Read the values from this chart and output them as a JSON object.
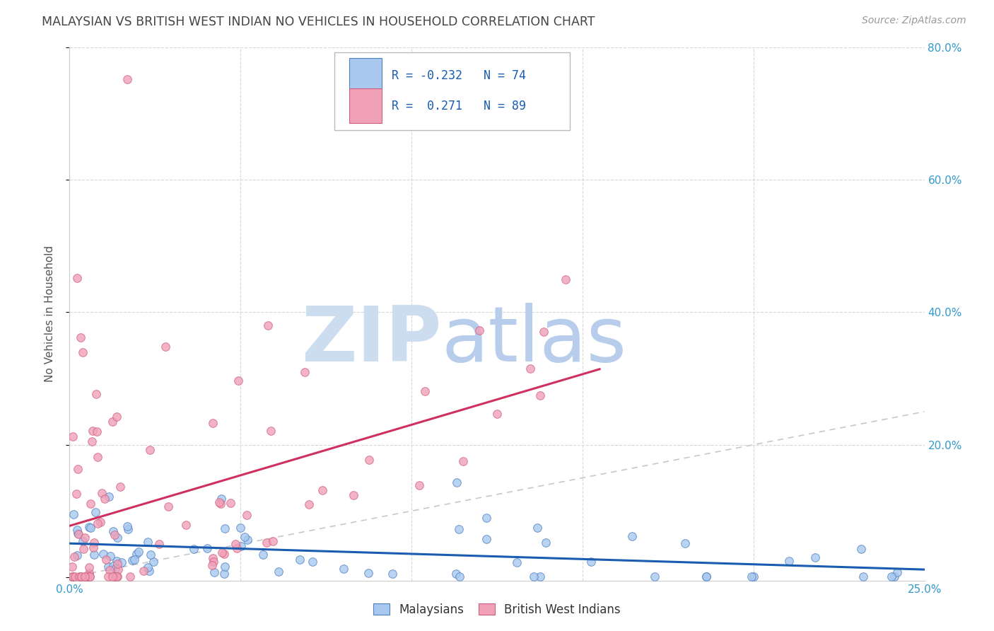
{
  "title": "MALAYSIAN VS BRITISH WEST INDIAN NO VEHICLES IN HOUSEHOLD CORRELATION CHART",
  "source": "Source: ZipAtlas.com",
  "ylabel": "No Vehicles in Household",
  "xlim": [
    0.0,
    0.25
  ],
  "ylim": [
    -0.005,
    0.8
  ],
  "blue_color": "#a8c8f0",
  "pink_color": "#f0a0b8",
  "blue_edge_color": "#5080c0",
  "pink_edge_color": "#d06080",
  "blue_line_color": "#1a5cb0",
  "pink_line_color": "#d03060",
  "diagonal_color": "#c8c8c8",
  "watermark_zip_color": "#ccddf0",
  "watermark_atlas_color": "#b8ccec",
  "axis_label_color": "#3399cc",
  "title_color": "#444444",
  "background_color": "#ffffff",
  "grid_color": "#d8d8d8",
  "legend_text_color": "#1a5cb0",
  "source_color": "#999999"
}
